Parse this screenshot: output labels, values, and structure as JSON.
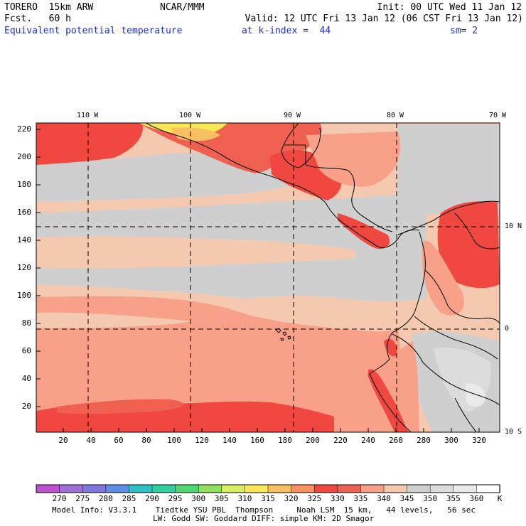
{
  "header": {
    "model": "TORERO  15km ARW",
    "org": "NCAR/MMM",
    "init": "Init: 00 UTC Wed 11 Jan 12",
    "fcst": "Fcst.   60 h",
    "valid": "Valid: 12 UTC Fri 13 Jan 12 (06 CST Fri 13 Jan 12)",
    "field": "Equivalent potential temperature",
    "level": "at k-index =  44",
    "smooth": "sm= 2"
  },
  "map": {
    "lon_labels": [
      "110 W",
      "100 W",
      "90 W",
      "80 W",
      "70 W"
    ],
    "lat_labels": [
      "10 N",
      "0",
      "10 S"
    ],
    "y_ticks": [
      "220",
      "200",
      "180",
      "160",
      "140",
      "120",
      "100",
      "80",
      "60",
      "40",
      "20"
    ],
    "x_ticks": [
      "20",
      "40",
      "60",
      "80",
      "100",
      "120",
      "140",
      "160",
      "180",
      "200",
      "220",
      "240",
      "260",
      "280",
      "300",
      "320"
    ]
  },
  "colorbar": {
    "labels": [
      "270",
      "275",
      "280",
      "285",
      "290",
      "295",
      "300",
      "305",
      "310",
      "315",
      "320",
      "325",
      "330",
      "335",
      "340",
      "345",
      "350",
      "355",
      "360"
    ],
    "unit": "K",
    "colors": [
      "#c050d0",
      "#a070d8",
      "#8078e0",
      "#5a90e8",
      "#30c0c8",
      "#30d0a0",
      "#50d870",
      "#90e060",
      "#d8f060",
      "#f8e858",
      "#f8c060",
      "#f89060",
      "#f04840",
      "#f06050",
      "#f8a088",
      "#f5c8b0",
      "#cfcfcf",
      "#dcdcdc",
      "#eaeaea",
      "#ffffff"
    ]
  },
  "footer": {
    "line1": "Model Info: V3.3.1    Tiedtke YSU PBL  Thompson     Noah LSM  15 km,   44 levels,   56 sec",
    "line2": "LW: Godd SW: Goddard DIFF: simple KM: 2D Smagor"
  },
  "colors": {
    "title_blue": "#1d2fc8",
    "tone_red": "#f04840",
    "tone_salmon": "#f8a088",
    "tone_peach": "#f5c8b0",
    "tone_gray": "#cfcfcf",
    "tone_yellow": "#f8e858",
    "tone_orange": "#f8c060"
  }
}
